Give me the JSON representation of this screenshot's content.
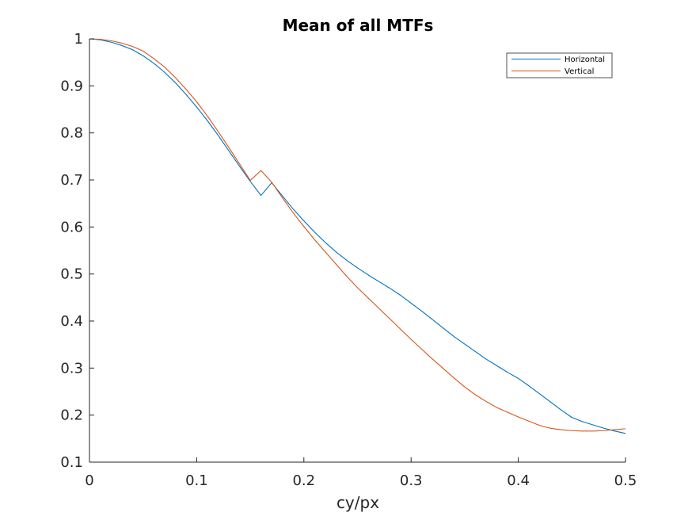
{
  "chart_data": {
    "type": "line",
    "title": "Mean of all MTFs",
    "xlabel": "cy/px",
    "ylabel": "",
    "xlim": [
      0,
      0.5
    ],
    "ylim": [
      0.1,
      1
    ],
    "xticks": [
      "0",
      "0.1",
      "0.2",
      "0.3",
      "0.4",
      "0.5"
    ],
    "yticks": [
      "0.1",
      "0.2",
      "0.3",
      "0.4",
      "0.5",
      "0.6",
      "0.7",
      "0.8",
      "0.9",
      "1"
    ],
    "grid": false,
    "legend": "top-right",
    "series": [
      {
        "name": "Horizontal",
        "color": "#0072BD",
        "x": [
          0,
          0.01,
          0.02,
          0.03,
          0.04,
          0.05,
          0.06,
          0.07,
          0.08,
          0.09,
          0.1,
          0.11,
          0.12,
          0.13,
          0.14,
          0.15,
          0.16,
          0.17,
          0.18,
          0.19,
          0.2,
          0.21,
          0.22,
          0.23,
          0.24,
          0.25,
          0.26,
          0.27,
          0.28,
          0.29,
          0.3,
          0.31,
          0.32,
          0.33,
          0.34,
          0.35,
          0.36,
          0.37,
          0.38,
          0.39,
          0.4,
          0.41,
          0.42,
          0.43,
          0.44,
          0.45,
          0.46,
          0.47,
          0.48,
          0.49,
          0.5
        ],
        "values": [
          1.0,
          0.998,
          0.993,
          0.986,
          0.977,
          0.964,
          0.948,
          0.929,
          0.907,
          0.882,
          0.855,
          0.826,
          0.795,
          0.762,
          0.729,
          0.697,
          0.667,
          0.694,
          0.666,
          0.638,
          0.613,
          0.589,
          0.567,
          0.547,
          0.529,
          0.513,
          0.498,
          0.484,
          0.47,
          0.455,
          0.438,
          0.421,
          0.403,
          0.385,
          0.367,
          0.351,
          0.335,
          0.319,
          0.305,
          0.291,
          0.278,
          0.262,
          0.245,
          0.228,
          0.211,
          0.195,
          0.186,
          0.179,
          0.172,
          0.166,
          0.161
        ]
      },
      {
        "name": "Vertical",
        "color": "#D95319",
        "x": [
          0,
          0.01,
          0.02,
          0.03,
          0.04,
          0.05,
          0.06,
          0.07,
          0.08,
          0.09,
          0.1,
          0.11,
          0.12,
          0.13,
          0.14,
          0.15,
          0.16,
          0.17,
          0.18,
          0.19,
          0.2,
          0.21,
          0.22,
          0.23,
          0.24,
          0.25,
          0.26,
          0.27,
          0.28,
          0.29,
          0.3,
          0.31,
          0.32,
          0.33,
          0.34,
          0.35,
          0.36,
          0.37,
          0.38,
          0.39,
          0.4,
          0.41,
          0.42,
          0.43,
          0.44,
          0.45,
          0.46,
          0.47,
          0.48,
          0.49,
          0.5
        ],
        "values": [
          1.0,
          0.999,
          0.996,
          0.991,
          0.984,
          0.974,
          0.958,
          0.94,
          0.918,
          0.893,
          0.866,
          0.836,
          0.803,
          0.769,
          0.734,
          0.699,
          0.72,
          0.695,
          0.662,
          0.63,
          0.601,
          0.573,
          0.547,
          0.521,
          0.495,
          0.471,
          0.449,
          0.427,
          0.405,
          0.383,
          0.361,
          0.34,
          0.319,
          0.299,
          0.279,
          0.26,
          0.243,
          0.229,
          0.216,
          0.206,
          0.196,
          0.187,
          0.178,
          0.172,
          0.169,
          0.167,
          0.166,
          0.166,
          0.167,
          0.169,
          0.171
        ]
      }
    ]
  }
}
